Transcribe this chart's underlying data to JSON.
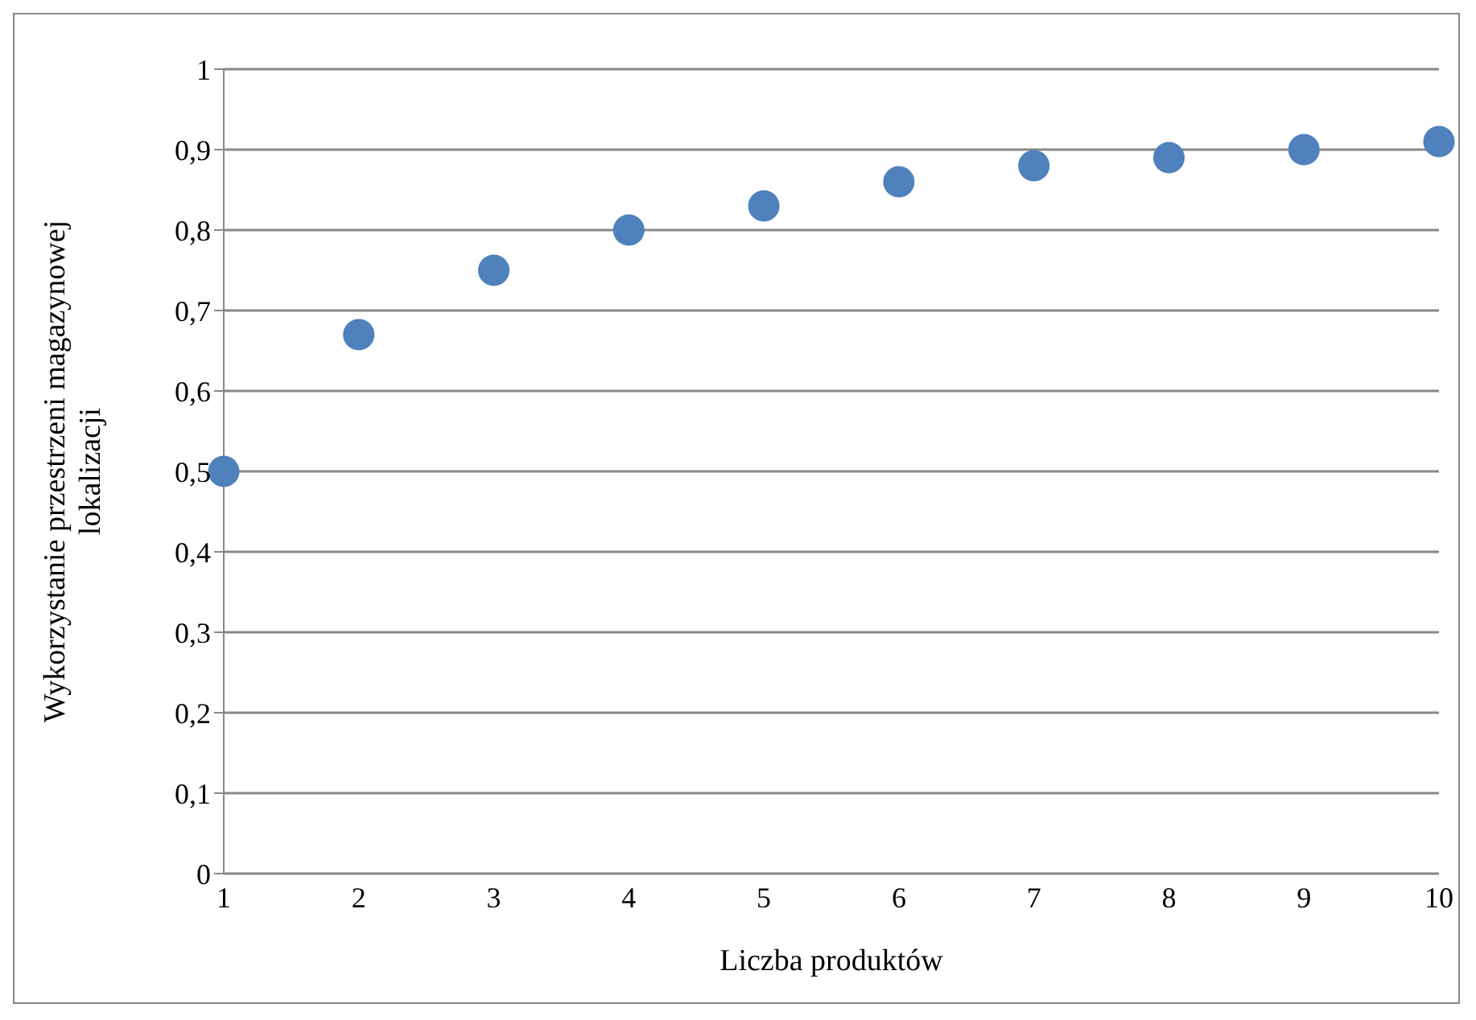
{
  "chart_data": {
    "type": "scatter",
    "xlabel": "Liczba produktów",
    "ylabel": "Wykorzystanie przestrzeni magazynowej lokalizacji",
    "categories": [
      "1",
      "2",
      "3",
      "4",
      "5",
      "6",
      "7",
      "8",
      "9",
      "10"
    ],
    "series": [
      {
        "color": "#4f81bd",
        "values": [
          0.5,
          0.67,
          0.75,
          0.8,
          0.83,
          0.86,
          0.88,
          0.89,
          0.9,
          0.91
        ]
      }
    ],
    "ylim": [
      0,
      1
    ],
    "yticks": [
      0,
      {
        "value": 0.1,
        "label": "0,1"
      },
      {
        "value": 0.2,
        "label": "0,2"
      },
      {
        "value": 0.3,
        "label": "0,3"
      },
      {
        "value": 0.4,
        "label": "0,4"
      },
      {
        "value": 0.5,
        "label": "0,5"
      },
      {
        "value": 0.6,
        "label": "0,6"
      },
      {
        "value": 0.7,
        "label": "0,7"
      },
      {
        "value": 0.8,
        "label": "0,8"
      },
      {
        "value": 0.9,
        "label": "0,9"
      },
      1
    ],
    "grid": "y",
    "marker": "circle",
    "legend": false
  }
}
